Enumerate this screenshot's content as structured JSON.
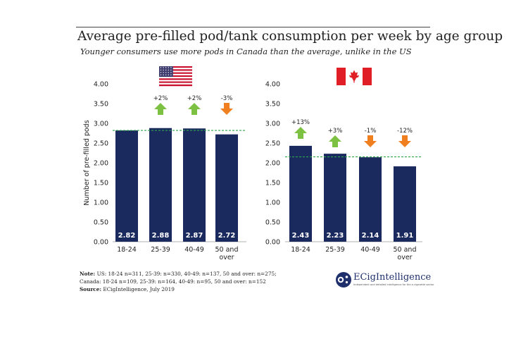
{
  "title": "Average pre-filled pod/tank consumption per week by age group",
  "subtitle": "Younger consumers use more pods in Canada than the average, unlike in the US",
  "colors": {
    "bar": "#1b2a5e",
    "up": "#7dc142",
    "down": "#f07f1f",
    "avg_line": "#2aa84a"
  },
  "chart_data": [
    {
      "type": "bar",
      "country": "US",
      "flag_icon": "us-flag-icon",
      "categories": [
        "18-24",
        "25-39",
        "40-49",
        "50 and over"
      ],
      "values": [
        2.82,
        2.88,
        2.87,
        2.72
      ],
      "value_labels": [
        "2.82",
        "2.88",
        "2.87",
        "2.72"
      ],
      "changes": [
        {
          "label": "",
          "direction": "none"
        },
        {
          "label": "+2%",
          "direction": "up"
        },
        {
          "label": "+2%",
          "direction": "up"
        },
        {
          "label": "-3%",
          "direction": "down"
        }
      ],
      "average": 2.82,
      "ylabel": "Number of pre-filled pods",
      "ylim": [
        0,
        4
      ],
      "yticks": [
        "0.00",
        "0.50",
        "1.00",
        "1.50",
        "2.00",
        "2.50",
        "3.00",
        "3.50",
        "4.00"
      ]
    },
    {
      "type": "bar",
      "country": "Canada",
      "flag_icon": "canada-flag-icon",
      "categories": [
        "18-24",
        "25-39",
        "40-49",
        "50 and over"
      ],
      "values": [
        2.43,
        2.23,
        2.14,
        1.91
      ],
      "value_labels": [
        "2.43",
        "2.23",
        "2.14",
        "1.91"
      ],
      "changes": [
        {
          "label": "+13%",
          "direction": "up"
        },
        {
          "label": "+3%",
          "direction": "up"
        },
        {
          "label": "-1%",
          "direction": "down"
        },
        {
          "label": "-12%",
          "direction": "down"
        }
      ],
      "average": 2.15,
      "ylabel": "",
      "ylim": [
        0,
        4
      ],
      "yticks": [
        "0.00",
        "0.50",
        "1.00",
        "1.50",
        "2.00",
        "2.50",
        "3.00",
        "3.50",
        "4.00"
      ]
    }
  ],
  "notes": {
    "note_label": "Note:",
    "note_line1": " US: 18-24 n=311, 25-39: n=330, 40-49: n=137, 50 and over: n=275;",
    "note_line2": "Canada: 18-24 n=109, 25-39: n=164, 40-49: n=95, 50 and over: n=152",
    "source_label": "Source:",
    "source_text": " ECigIntelligence, July 2019"
  },
  "logo": {
    "name": "ECigIntelligence",
    "tagline": "Independent and detailed intelligence for the e-cigarette sector"
  }
}
